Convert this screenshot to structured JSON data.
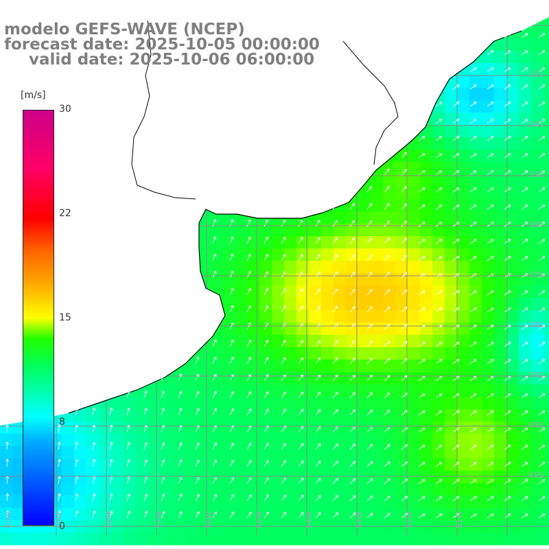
{
  "title": {
    "line1": "modelo GEFS-WAVE (NCEP)",
    "line2": "forecast date: 2025-10-05 00:00:00",
    "line3": "valid date: 2025-10-06 06:00:00"
  },
  "colorbar": {
    "unit": "[m/s]",
    "ticks": [
      "30",
      "22",
      "15",
      "8",
      "0"
    ],
    "tick_values": [
      30,
      22,
      15,
      8,
      0
    ],
    "range": [
      0,
      30
    ],
    "palette": [
      "#0000ff",
      "#00aaff",
      "#00ffff",
      "#00ff60",
      "#22ff00",
      "#ffff00",
      "#ffaa00",
      "#ff6600",
      "#ff0000",
      "#cc0088"
    ]
  },
  "map": {
    "variable": "wind speed (m/s) with direction arrows",
    "land_color": "#ffffff",
    "grid_color": "#888888",
    "coastline_color": "#000000",
    "arrow_color": "#ffffff",
    "lat_labels": [
      "33S",
      "34S",
      "35S",
      "36S",
      "37S",
      "38S",
      "39S",
      "40S",
      "41S"
    ],
    "lon_labels": [
      "60W",
      "59W",
      "58W",
      "57W",
      "56W",
      "55W",
      "54W",
      "53W",
      "52W",
      "51W"
    ]
  }
}
